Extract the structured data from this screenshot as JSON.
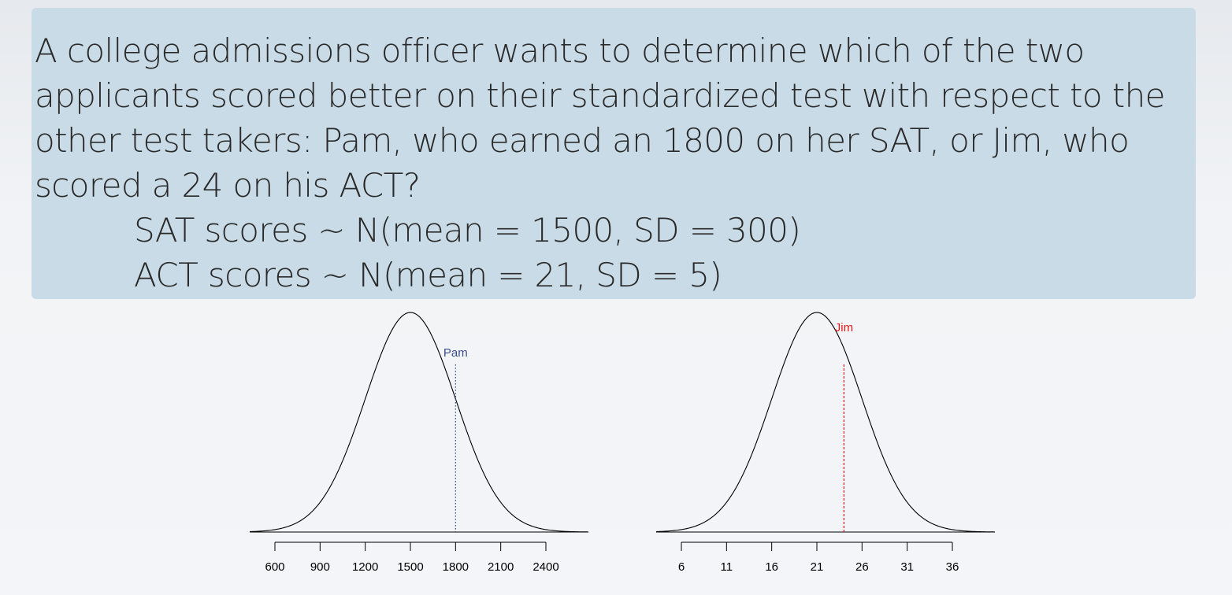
{
  "question": {
    "text": "A college admissions officer wants to determine which of the two applicants scored better on their standardized test with respect to the other test takers: Pam, who earned an 1800 on her SAT, or Jim, who scored a 24 on his ACT?",
    "sat_line": "SAT scores ~ N(mean = 1500, SD = 300)",
    "act_line": "ACT scores ~ N(mean = 21, SD = 5)"
  },
  "chart_data": [
    {
      "type": "line",
      "distribution": "normal",
      "mean": 1500,
      "sd": 300,
      "xlim": [
        600,
        2400
      ],
      "xticks": [
        600,
        900,
        1200,
        1500,
        1800,
        2100,
        2400
      ],
      "marker": {
        "label": "Pam",
        "x": 1800,
        "color": "#3a4f8a",
        "style": "dotted"
      }
    },
    {
      "type": "line",
      "distribution": "normal",
      "mean": 21,
      "sd": 5,
      "xlim": [
        6,
        36
      ],
      "xticks": [
        6,
        11,
        16,
        21,
        26,
        31,
        36
      ],
      "marker": {
        "label": "Jim",
        "x": 24,
        "color": "#e0191c",
        "style": "dashed"
      }
    }
  ]
}
